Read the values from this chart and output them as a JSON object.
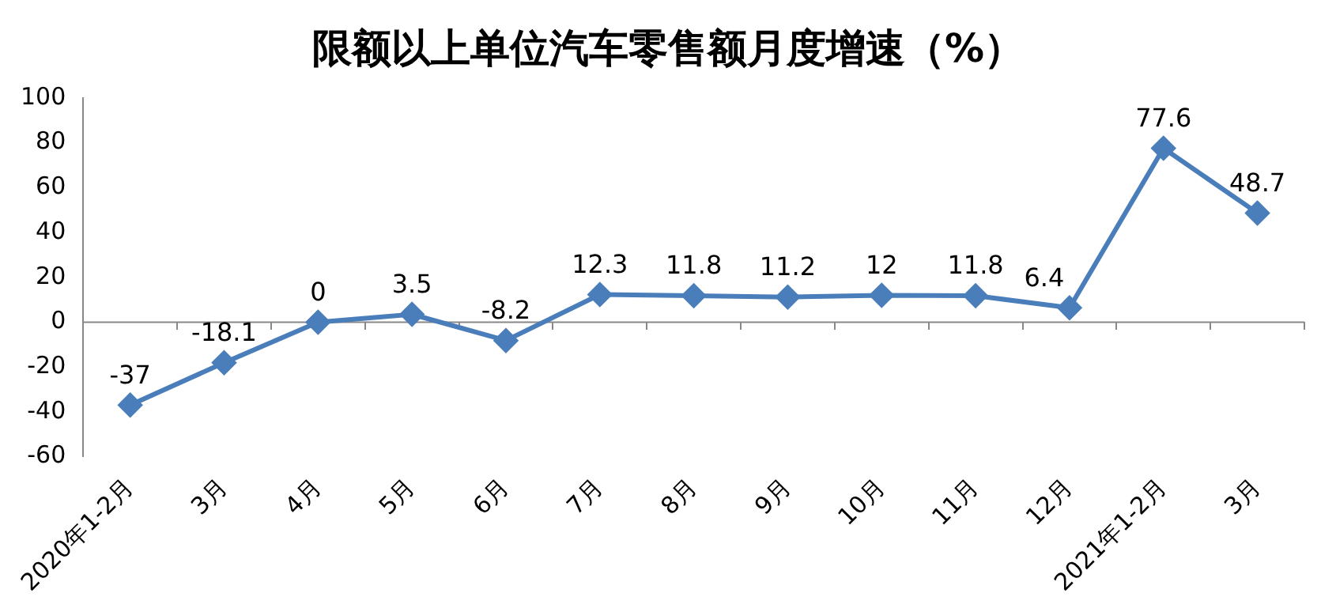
{
  "chart_data": {
    "type": "line",
    "title": "限额以上单位汽车零售额月度增速（%）",
    "categories": [
      "2020年1-2月",
      "3月",
      "4月",
      "5月",
      "6月",
      "7月",
      "8月",
      "9月",
      "10月",
      "11月",
      "12月",
      "2021年1-2月",
      "3月"
    ],
    "series": [
      {
        "color": "#4a7ebb",
        "values": [
          -37,
          -18.1,
          0,
          3.5,
          -8.2,
          12.3,
          11.8,
          11.2,
          12,
          11.8,
          6.4,
          77.6,
          48.7
        ]
      }
    ],
    "ylim": [
      -60,
      100
    ],
    "yticks": [
      -60,
      -40,
      -20,
      0,
      20,
      40,
      60,
      80,
      100
    ],
    "ref_lines": [
      {
        "axis": "y",
        "value": 0,
        "color": "#888888"
      }
    ],
    "grid": false,
    "legend": false,
    "marker": "diamond",
    "line_style": "solid",
    "data_labels": true
  }
}
